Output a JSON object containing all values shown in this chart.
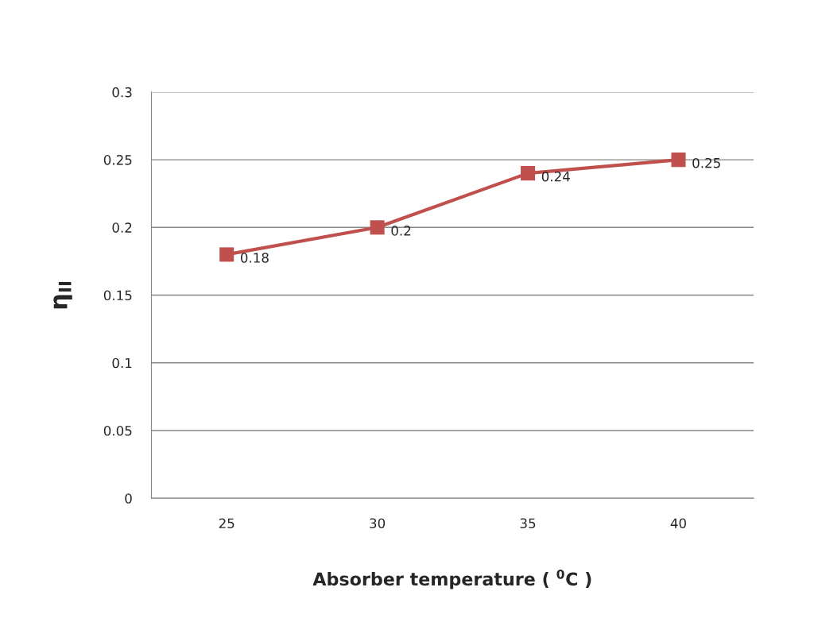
{
  "chart_data": {
    "type": "line",
    "categories": [
      "25",
      "30",
      "35",
      "40"
    ],
    "series": [
      {
        "color": "#c0504d",
        "values": [
          0.18,
          0.2,
          0.24,
          0.25
        ]
      }
    ],
    "xlabel": "Absorber temperature ( $^{0}$C )",
    "ylabel": "η$_{II}$",
    "ylim": [
      0,
      0.3
    ],
    "yticks": [
      0,
      0.05,
      0.1,
      0.15,
      0.2,
      0.25,
      0.3
    ],
    "grid": "y",
    "marker": "square",
    "line_style": "solid",
    "data_labels": true
  }
}
